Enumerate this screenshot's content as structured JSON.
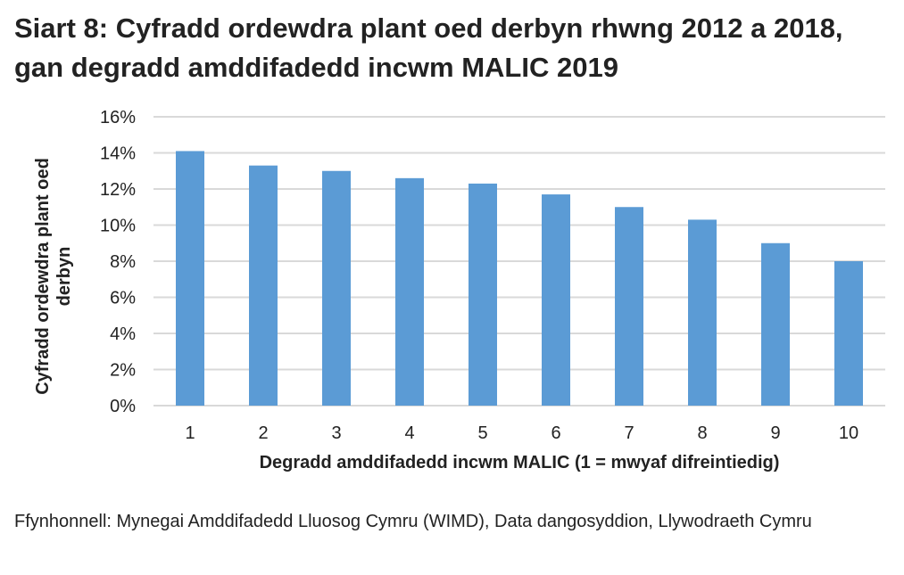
{
  "chart_data": {
    "type": "bar",
    "title": "Siart 8: Cyfradd ordewdra plant oed derbyn rhwng 2012 a 2018, gan degradd amddifadedd incwm MALIC 2019",
    "xlabel": "Degradd amddifadedd incwm MALIC (1 = mwyaf difreintiedig)",
    "ylabel": "Cyfradd ordewdra plant oed derbyn",
    "categories": [
      "1",
      "2",
      "3",
      "4",
      "5",
      "6",
      "7",
      "8",
      "9",
      "10"
    ],
    "values": [
      14.1,
      13.3,
      13.0,
      12.6,
      12.3,
      11.7,
      11.0,
      10.3,
      9.0,
      8.0
    ],
    "ylim": [
      0,
      16
    ],
    "yticks": [
      "0%",
      "2%",
      "4%",
      "6%",
      "8%",
      "10%",
      "12%",
      "14%",
      "16%"
    ],
    "grid": true,
    "bar_color": "#5B9BD5",
    "grid_color": "#D9D9D9"
  },
  "source": "Ffynhonnell: Mynegai Amddifadedd Lluosog Cymru (WIMD), Data dangosyddion, Llywodraeth Cymru"
}
